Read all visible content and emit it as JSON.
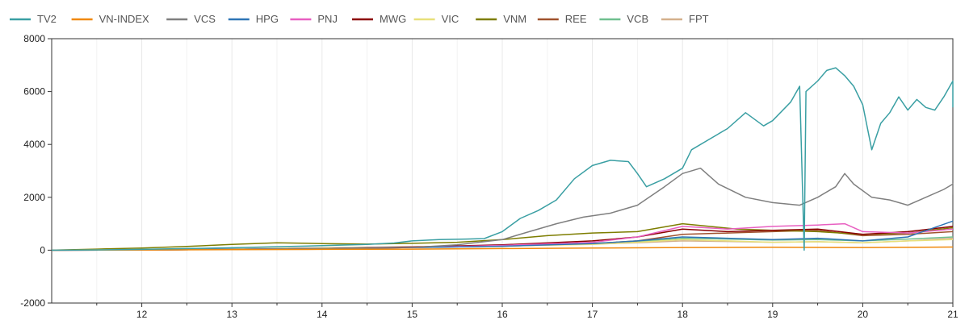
{
  "chart_data": {
    "type": "line",
    "xlabel": "",
    "ylabel": "",
    "xlim": [
      11,
      21
    ],
    "ylim": [
      -2000,
      8000
    ],
    "grid": true,
    "legend_position": "top-left",
    "y_ticks": [
      -2000,
      0,
      2000,
      4000,
      6000,
      8000
    ],
    "y_tick_labels": [
      "-2000",
      "0",
      "2000",
      "4000",
      "6000",
      "8000"
    ],
    "x_ticks": [
      12,
      13,
      14,
      15,
      16,
      17,
      18,
      19,
      20,
      21
    ],
    "x_tick_labels": [
      "12",
      "13",
      "14",
      "15",
      "16",
      "17",
      "18",
      "19",
      "20",
      "21"
    ],
    "series": [
      {
        "name": "TV2",
        "color": "#3a9fa3",
        "points": [
          [
            11,
            0
          ],
          [
            11.5,
            10
          ],
          [
            12,
            30
          ],
          [
            12.5,
            60
          ],
          [
            13,
            90
          ],
          [
            13.5,
            130
          ],
          [
            14,
            170
          ],
          [
            14.5,
            220
          ],
          [
            14.8,
            270
          ],
          [
            15,
            350
          ],
          [
            15.3,
            400
          ],
          [
            15.6,
            420
          ],
          [
            15.8,
            440
          ],
          [
            16,
            700
          ],
          [
            16.2,
            1200
          ],
          [
            16.4,
            1500
          ],
          [
            16.6,
            1900
          ],
          [
            16.8,
            2700
          ],
          [
            17,
            3200
          ],
          [
            17.2,
            3400
          ],
          [
            17.4,
            3350
          ],
          [
            17.5,
            2900
          ],
          [
            17.6,
            2400
          ],
          [
            17.8,
            2700
          ],
          [
            18,
            3100
          ],
          [
            18.1,
            3800
          ],
          [
            18.3,
            4200
          ],
          [
            18.5,
            4600
          ],
          [
            18.7,
            5200
          ],
          [
            18.9,
            4700
          ],
          [
            19.0,
            4900
          ],
          [
            19.2,
            5600
          ],
          [
            19.3,
            6200
          ],
          [
            19.35,
            0
          ],
          [
            19.37,
            6000
          ],
          [
            19.5,
            6400
          ],
          [
            19.6,
            6800
          ],
          [
            19.7,
            6900
          ],
          [
            19.8,
            6600
          ],
          [
            19.9,
            6200
          ],
          [
            20.0,
            5500
          ],
          [
            20.1,
            3800
          ],
          [
            20.2,
            4800
          ],
          [
            20.3,
            5200
          ],
          [
            20.4,
            5800
          ],
          [
            20.5,
            5300
          ],
          [
            20.6,
            5700
          ],
          [
            20.7,
            5400
          ],
          [
            20.8,
            5300
          ],
          [
            20.9,
            5800
          ],
          [
            21.0,
            6400
          ],
          [
            21.0,
            5400
          ]
        ]
      },
      {
        "name": "VN-INDEX",
        "color": "#f0880a",
        "points": [
          [
            11,
            0
          ],
          [
            12,
            10
          ],
          [
            13,
            20
          ],
          [
            14,
            30
          ],
          [
            15,
            40
          ],
          [
            16,
            60
          ],
          [
            17,
            80
          ],
          [
            18,
            100
          ],
          [
            19,
            110
          ],
          [
            20,
            100
          ],
          [
            21,
            120
          ]
        ]
      },
      {
        "name": "VCS",
        "color": "#7f7f7f",
        "points": [
          [
            11,
            0
          ],
          [
            12,
            10
          ],
          [
            13,
            30
          ],
          [
            14,
            60
          ],
          [
            15,
            100
          ],
          [
            15.5,
            200
          ],
          [
            16,
            400
          ],
          [
            16.3,
            700
          ],
          [
            16.6,
            1000
          ],
          [
            16.9,
            1250
          ],
          [
            17.2,
            1400
          ],
          [
            17.5,
            1700
          ],
          [
            17.8,
            2400
          ],
          [
            18,
            2900
          ],
          [
            18.2,
            3100
          ],
          [
            18.4,
            2500
          ],
          [
            18.7,
            2000
          ],
          [
            19,
            1800
          ],
          [
            19.3,
            1700
          ],
          [
            19.5,
            2000
          ],
          [
            19.7,
            2400
          ],
          [
            19.8,
            2900
          ],
          [
            19.9,
            2500
          ],
          [
            20.1,
            2000
          ],
          [
            20.3,
            1900
          ],
          [
            20.5,
            1700
          ],
          [
            20.7,
            2000
          ],
          [
            20.9,
            2300
          ],
          [
            21.0,
            2500
          ],
          [
            21.0,
            2100
          ]
        ]
      },
      {
        "name": "HPG",
        "color": "#2e75b6",
        "points": [
          [
            11,
            0
          ],
          [
            12,
            10
          ],
          [
            13,
            30
          ],
          [
            14,
            60
          ],
          [
            15,
            100
          ],
          [
            16,
            150
          ],
          [
            17,
            250
          ],
          [
            17.5,
            350
          ],
          [
            18,
            500
          ],
          [
            18.5,
            450
          ],
          [
            19,
            400
          ],
          [
            19.5,
            450
          ],
          [
            20,
            350
          ],
          [
            20.5,
            500
          ],
          [
            21,
            1100
          ]
        ]
      },
      {
        "name": "PNJ",
        "color": "#e85fc1",
        "points": [
          [
            11,
            0
          ],
          [
            12,
            10
          ],
          [
            13,
            30
          ],
          [
            14,
            60
          ],
          [
            15,
            100
          ],
          [
            16,
            180
          ],
          [
            17,
            300
          ],
          [
            17.5,
            500
          ],
          [
            18,
            900
          ],
          [
            18.5,
            800
          ],
          [
            19,
            900
          ],
          [
            19.5,
            950
          ],
          [
            19.8,
            1000
          ],
          [
            20,
            700
          ],
          [
            20.5,
            650
          ],
          [
            21,
            800
          ]
        ]
      },
      {
        "name": "MWG",
        "color": "#8b0000",
        "points": [
          [
            11,
            0
          ],
          [
            12,
            10
          ],
          [
            13,
            30
          ],
          [
            14,
            60
          ],
          [
            15,
            120
          ],
          [
            16,
            200
          ],
          [
            17,
            350
          ],
          [
            17.5,
            500
          ],
          [
            18,
            800
          ],
          [
            18.5,
            700
          ],
          [
            19,
            750
          ],
          [
            19.5,
            800
          ],
          [
            20,
            600
          ],
          [
            20.5,
            700
          ],
          [
            21,
            900
          ]
        ]
      },
      {
        "name": "VIC",
        "color": "#e8e07a",
        "points": [
          [
            11,
            0
          ],
          [
            12,
            20
          ],
          [
            13,
            40
          ],
          [
            14,
            80
          ],
          [
            15,
            110
          ],
          [
            16,
            160
          ],
          [
            17,
            220
          ],
          [
            17.5,
            300
          ],
          [
            18,
            400
          ],
          [
            18.5,
            350
          ],
          [
            19,
            300
          ],
          [
            19.5,
            320
          ],
          [
            20,
            280
          ],
          [
            20.5,
            350
          ],
          [
            21,
            400
          ]
        ]
      },
      {
        "name": "VNM",
        "color": "#7d7d00",
        "points": [
          [
            11,
            0
          ],
          [
            11.5,
            40
          ],
          [
            12,
            80
          ],
          [
            12.5,
            140
          ],
          [
            13,
            220
          ],
          [
            13.5,
            280
          ],
          [
            14,
            250
          ],
          [
            14.5,
            230
          ],
          [
            15,
            260
          ],
          [
            15.5,
            300
          ],
          [
            16,
            400
          ],
          [
            16.5,
            550
          ],
          [
            17,
            650
          ],
          [
            17.5,
            700
          ],
          [
            18,
            1000
          ],
          [
            18.3,
            900
          ],
          [
            18.6,
            800
          ],
          [
            19,
            750
          ],
          [
            19.5,
            700
          ],
          [
            20,
            600
          ],
          [
            20.5,
            650
          ],
          [
            21,
            850
          ]
        ]
      },
      {
        "name": "REE",
        "color": "#a0522d",
        "points": [
          [
            11,
            0
          ],
          [
            12,
            10
          ],
          [
            13,
            30
          ],
          [
            14,
            60
          ],
          [
            15,
            100
          ],
          [
            16,
            150
          ],
          [
            17,
            250
          ],
          [
            17.5,
            350
          ],
          [
            18,
            600
          ],
          [
            18.5,
            650
          ],
          [
            19,
            700
          ],
          [
            19.5,
            750
          ],
          [
            20,
            550
          ],
          [
            20.5,
            600
          ],
          [
            21,
            700
          ]
        ]
      },
      {
        "name": "VCB",
        "color": "#6fbf8f",
        "points": [
          [
            11,
            0
          ],
          [
            12,
            10
          ],
          [
            13,
            30
          ],
          [
            14,
            70
          ],
          [
            15,
            110
          ],
          [
            16,
            170
          ],
          [
            17,
            260
          ],
          [
            17.5,
            330
          ],
          [
            18,
            450
          ],
          [
            18.5,
            420
          ],
          [
            19,
            380
          ],
          [
            19.5,
            400
          ],
          [
            20,
            350
          ],
          [
            20.5,
            420
          ],
          [
            21,
            500
          ]
        ]
      },
      {
        "name": "FPT",
        "color": "#d4b08c",
        "points": [
          [
            11,
            0
          ],
          [
            12,
            20
          ],
          [
            13,
            50
          ],
          [
            14,
            90
          ],
          [
            15,
            130
          ],
          [
            16,
            180
          ],
          [
            17,
            230
          ],
          [
            17.5,
            280
          ],
          [
            18,
            350
          ],
          [
            18.5,
            330
          ],
          [
            19,
            300
          ],
          [
            19.5,
            320
          ],
          [
            20,
            280
          ],
          [
            20.5,
            350
          ],
          [
            21,
            450
          ]
        ]
      }
    ]
  }
}
